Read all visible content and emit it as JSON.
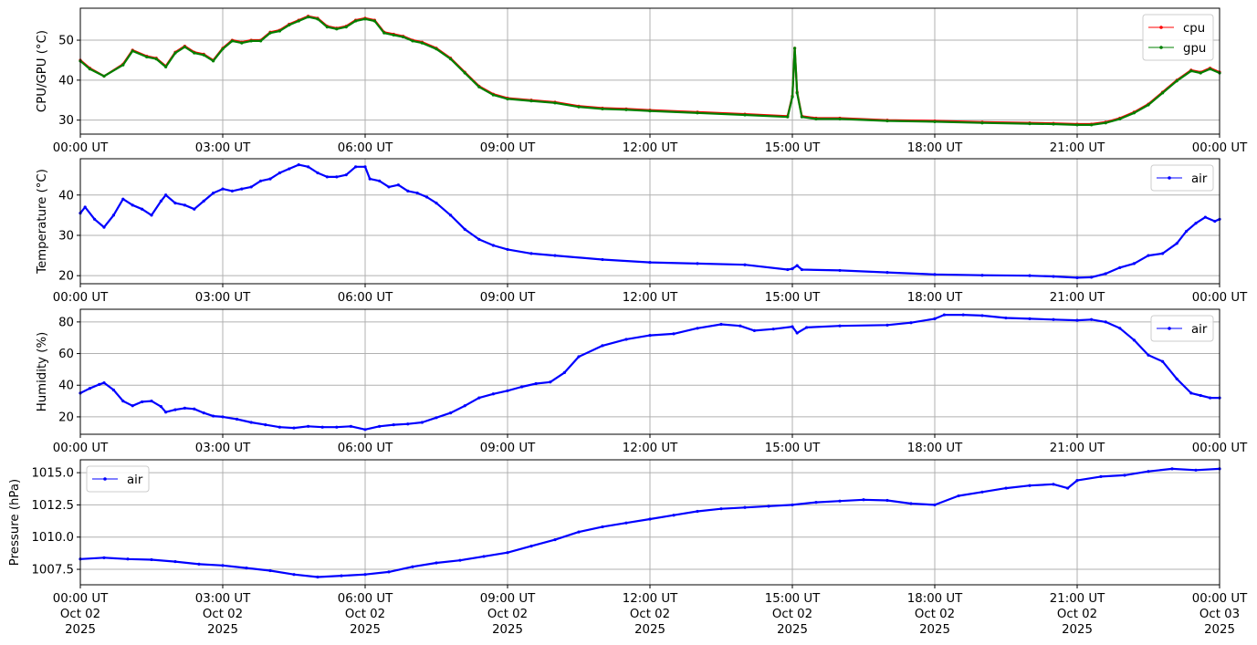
{
  "chart_data": [
    {
      "type": "line",
      "ylabel": "CPU/GPU (°C)",
      "xlim": [
        0,
        24
      ],
      "ylim": [
        26.5,
        58
      ],
      "yticks": [
        "30",
        "40",
        "50"
      ],
      "ytick_values": [
        30,
        40,
        50
      ],
      "xtick_labels": [
        "00:00 UT",
        "03:00 UT",
        "06:00 UT",
        "09:00 UT",
        "12:00 UT",
        "15:00 UT",
        "18:00 UT",
        "21:00 UT",
        "00:00 UT"
      ],
      "grid": true,
      "legend_position": "top-right",
      "series": [
        {
          "name": "cpu",
          "color": "#ff0000",
          "x": [
            0,
            0.2,
            0.5,
            0.9,
            1.1,
            1.4,
            1.6,
            1.8,
            2.0,
            2.2,
            2.4,
            2.6,
            2.8,
            3.0,
            3.2,
            3.4,
            3.6,
            3.8,
            4.0,
            4.2,
            4.4,
            4.6,
            4.8,
            5.0,
            5.2,
            5.4,
            5.6,
            5.8,
            6.0,
            6.2,
            6.4,
            6.6,
            6.8,
            7.0,
            7.2,
            7.5,
            7.8,
            8.1,
            8.4,
            8.7,
            9.0,
            9.5,
            10.0,
            10.5,
            11.0,
            11.5,
            12.0,
            13.0,
            14.0,
            14.9,
            15.0,
            15.05,
            15.1,
            15.2,
            15.5,
            16.0,
            17.0,
            18.0,
            19.0,
            20.0,
            20.5,
            21.0,
            21.3,
            21.6,
            21.9,
            22.2,
            22.5,
            22.8,
            23.1,
            23.4,
            23.6,
            23.8,
            24.0
          ],
          "values": [
            45,
            43,
            41,
            44,
            47.5,
            46,
            45.5,
            43.5,
            47,
            48.5,
            47,
            46.5,
            45,
            48,
            50,
            49.5,
            50,
            50,
            52,
            52.5,
            54,
            55,
            56,
            55.5,
            53.5,
            53,
            53.5,
            55,
            55.5,
            55,
            52,
            51.5,
            51,
            50,
            49.5,
            48,
            45.5,
            42,
            38.5,
            36.5,
            35.5,
            35,
            34.5,
            33.5,
            33,
            32.8,
            32.5,
            32,
            31.5,
            31,
            36,
            48,
            37,
            31,
            30.5,
            30.5,
            30,
            29.8,
            29.5,
            29.3,
            29.2,
            29,
            29,
            29.5,
            30.5,
            32,
            34,
            37,
            40,
            42.5,
            42,
            43,
            42
          ]
        },
        {
          "name": "gpu",
          "color": "#008000",
          "x": [
            0,
            0.2,
            0.5,
            0.9,
            1.1,
            1.4,
            1.6,
            1.8,
            2.0,
            2.2,
            2.4,
            2.6,
            2.8,
            3.0,
            3.2,
            3.4,
            3.6,
            3.8,
            4.0,
            4.2,
            4.4,
            4.6,
            4.8,
            5.0,
            5.2,
            5.4,
            5.6,
            5.8,
            6.0,
            6.2,
            6.4,
            6.6,
            6.8,
            7.0,
            7.2,
            7.5,
            7.8,
            8.1,
            8.4,
            8.7,
            9.0,
            9.5,
            10.0,
            10.5,
            11.0,
            11.5,
            12.0,
            13.0,
            14.0,
            14.9,
            15.0,
            15.05,
            15.1,
            15.2,
            15.5,
            16.0,
            17.0,
            18.0,
            19.0,
            20.0,
            20.5,
            21.0,
            21.3,
            21.6,
            21.9,
            22.2,
            22.5,
            22.8,
            23.1,
            23.4,
            23.6,
            23.8,
            24.0
          ],
          "values": [
            44.8,
            42.8,
            41,
            43.8,
            47.3,
            45.8,
            45.3,
            43.3,
            46.8,
            48.3,
            46.8,
            46.3,
            44.8,
            47.8,
            49.8,
            49.3,
            49.8,
            49.8,
            51.8,
            52.3,
            53.8,
            54.8,
            55.8,
            55.3,
            53.3,
            52.8,
            53.3,
            54.8,
            55.3,
            54.8,
            51.8,
            51.3,
            50.8,
            49.8,
            49.3,
            47.8,
            45.3,
            41.8,
            38.3,
            36.3,
            35.3,
            34.8,
            34.3,
            33.3,
            32.8,
            32.6,
            32.3,
            31.8,
            31.3,
            30.8,
            35.8,
            48,
            36.8,
            30.8,
            30.3,
            30.3,
            29.8,
            29.6,
            29.3,
            29.1,
            29,
            28.8,
            28.8,
            29.3,
            30.3,
            31.8,
            33.8,
            36.8,
            39.8,
            42.3,
            41.8,
            42.8,
            41.8
          ]
        }
      ]
    },
    {
      "type": "line",
      "ylabel": "Temperature (°C)",
      "xlim": [
        0,
        24
      ],
      "ylim": [
        18,
        49
      ],
      "yticks": [
        "20",
        "30",
        "40"
      ],
      "ytick_values": [
        20,
        30,
        40
      ],
      "xtick_labels": [
        "00:00 UT",
        "03:00 UT",
        "06:00 UT",
        "09:00 UT",
        "12:00 UT",
        "15:00 UT",
        "18:00 UT",
        "21:00 UT",
        "00:00 UT"
      ],
      "grid": true,
      "legend_position": "top-right",
      "series": [
        {
          "name": "air",
          "color": "#0000ff",
          "x": [
            0,
            0.1,
            0.3,
            0.5,
            0.7,
            0.9,
            1.1,
            1.3,
            1.5,
            1.7,
            1.8,
            2.0,
            2.2,
            2.4,
            2.6,
            2.8,
            3.0,
            3.2,
            3.4,
            3.6,
            3.8,
            4.0,
            4.2,
            4.4,
            4.6,
            4.8,
            5.0,
            5.2,
            5.4,
            5.6,
            5.8,
            6.0,
            6.1,
            6.3,
            6.5,
            6.7,
            6.9,
            7.1,
            7.3,
            7.5,
            7.8,
            8.1,
            8.4,
            8.7,
            9.0,
            9.5,
            10.0,
            11.0,
            12.0,
            13.0,
            14.0,
            14.9,
            15.0,
            15.1,
            15.2,
            16.0,
            17.0,
            18.0,
            19.0,
            20.0,
            20.5,
            21.0,
            21.3,
            21.6,
            21.9,
            22.2,
            22.5,
            22.8,
            23.1,
            23.3,
            23.5,
            23.7,
            23.9,
            24.0
          ],
          "values": [
            35.5,
            37,
            34,
            32,
            35,
            39,
            37.5,
            36.5,
            35,
            38.5,
            40,
            38,
            37.5,
            36.5,
            38.5,
            40.5,
            41.5,
            41,
            41.5,
            42,
            43.5,
            44,
            45.5,
            46.5,
            47.5,
            47,
            45.5,
            44.5,
            44.5,
            45,
            47,
            47,
            44,
            43.5,
            42,
            42.5,
            41,
            40.5,
            39.5,
            38,
            35,
            31.5,
            29,
            27.5,
            26.5,
            25.5,
            25,
            24,
            23.3,
            23,
            22.7,
            21.5,
            21.7,
            22.5,
            21.5,
            21.3,
            20.8,
            20.3,
            20.1,
            20,
            19.8,
            19.5,
            19.6,
            20.5,
            22,
            23,
            25,
            25.5,
            28,
            31,
            33,
            34.5,
            33.5,
            34
          ]
        }
      ]
    },
    {
      "type": "line",
      "ylabel": "Humidity (%)",
      "xlim": [
        0,
        24
      ],
      "ylim": [
        9,
        88
      ],
      "yticks": [
        "20",
        "40",
        "60",
        "80"
      ],
      "ytick_values": [
        20,
        40,
        60,
        80
      ],
      "xtick_labels": [
        "00:00 UT",
        "03:00 UT",
        "06:00 UT",
        "09:00 UT",
        "12:00 UT",
        "15:00 UT",
        "18:00 UT",
        "21:00 UT",
        "00:00 UT"
      ],
      "grid": true,
      "legend_position": "top-right",
      "series": [
        {
          "name": "air",
          "color": "#0000ff",
          "x": [
            0,
            0.2,
            0.4,
            0.5,
            0.7,
            0.9,
            1.1,
            1.3,
            1.5,
            1.7,
            1.8,
            2.0,
            2.2,
            2.4,
            2.6,
            2.8,
            3.0,
            3.3,
            3.6,
            3.9,
            4.2,
            4.5,
            4.8,
            5.1,
            5.4,
            5.7,
            6.0,
            6.3,
            6.6,
            6.9,
            7.2,
            7.5,
            7.8,
            8.1,
            8.4,
            8.7,
            9.0,
            9.3,
            9.6,
            9.9,
            10.2,
            10.5,
            11.0,
            11.5,
            12.0,
            12.5,
            13.0,
            13.5,
            13.9,
            14.2,
            14.6,
            15.0,
            15.1,
            15.3,
            16.0,
            17.0,
            17.5,
            18.0,
            18.2,
            18.6,
            19.0,
            19.5,
            20.0,
            20.5,
            21.0,
            21.3,
            21.6,
            21.9,
            22.2,
            22.5,
            22.8,
            23.1,
            23.4,
            23.6,
            23.8,
            24.0
          ],
          "values": [
            35,
            38,
            40.5,
            41.5,
            37,
            30,
            27,
            29.5,
            30,
            26.5,
            23,
            24.5,
            25.5,
            25,
            22.5,
            20.5,
            20,
            18.5,
            16.5,
            15,
            13.5,
            13,
            14,
            13.5,
            13.5,
            14,
            12,
            14,
            15,
            15.5,
            16.5,
            19.5,
            22.5,
            27,
            32,
            34.5,
            36.5,
            39,
            41,
            42,
            48,
            58,
            65,
            69,
            71.5,
            72.5,
            76,
            78.5,
            77.5,
            74.5,
            75.5,
            77,
            73,
            76.5,
            77.5,
            78,
            79.5,
            82,
            84.5,
            84.5,
            84,
            82.5,
            82,
            81.5,
            81,
            81.5,
            80,
            76,
            68.5,
            59,
            55,
            44,
            35,
            33.5,
            32,
            32
          ]
        }
      ]
    },
    {
      "type": "line",
      "ylabel": "Pressure (hPa)",
      "xlim": [
        0,
        24
      ],
      "ylim": [
        1006.3,
        1016.0
      ],
      "yticks": [
        "1007.5",
        "1010.0",
        "1012.5",
        "1015.0"
      ],
      "ytick_values": [
        1007.5,
        1010.0,
        1012.5,
        1015.0
      ],
      "xtick_labels": [
        "00:00 UT\nOct 02\n2025",
        "03:00 UT\nOct 02\n2025",
        "06:00 UT\nOct 02\n2025",
        "09:00 UT\nOct 02\n2025",
        "12:00 UT\nOct 02\n2025",
        "15:00 UT\nOct 02\n2025",
        "18:00 UT\nOct 02\n2025",
        "21:00 UT\nOct 02\n2025",
        "00:00 UT\nOct 03\n2025"
      ],
      "grid": true,
      "legend_position": "top-left",
      "series": [
        {
          "name": "air",
          "color": "#0000ff",
          "x": [
            0,
            0.5,
            1.0,
            1.5,
            2.0,
            2.5,
            3.0,
            3.5,
            4.0,
            4.5,
            5.0,
            5.5,
            6.0,
            6.5,
            7.0,
            7.5,
            8.0,
            8.5,
            9.0,
            9.5,
            10.0,
            10.5,
            11.0,
            11.5,
            12.0,
            12.5,
            13.0,
            13.5,
            14.0,
            14.5,
            15.0,
            15.5,
            16.0,
            16.5,
            17.0,
            17.5,
            18.0,
            18.5,
            19.0,
            19.5,
            20.0,
            20.5,
            20.8,
            21.0,
            21.5,
            22.0,
            22.5,
            23.0,
            23.5,
            24.0
          ],
          "values": [
            1008.3,
            1008.4,
            1008.3,
            1008.25,
            1008.1,
            1007.9,
            1007.8,
            1007.6,
            1007.4,
            1007.1,
            1006.9,
            1007.0,
            1007.1,
            1007.3,
            1007.7,
            1008.0,
            1008.2,
            1008.5,
            1008.8,
            1009.3,
            1009.8,
            1010.4,
            1010.8,
            1011.1,
            1011.4,
            1011.7,
            1012.0,
            1012.2,
            1012.3,
            1012.4,
            1012.5,
            1012.7,
            1012.8,
            1012.9,
            1012.85,
            1012.6,
            1012.5,
            1013.2,
            1013.5,
            1013.8,
            1014.0,
            1014.1,
            1013.8,
            1014.4,
            1014.7,
            1014.8,
            1015.1,
            1015.3,
            1015.2,
            1015.3
          ]
        }
      ]
    }
  ]
}
